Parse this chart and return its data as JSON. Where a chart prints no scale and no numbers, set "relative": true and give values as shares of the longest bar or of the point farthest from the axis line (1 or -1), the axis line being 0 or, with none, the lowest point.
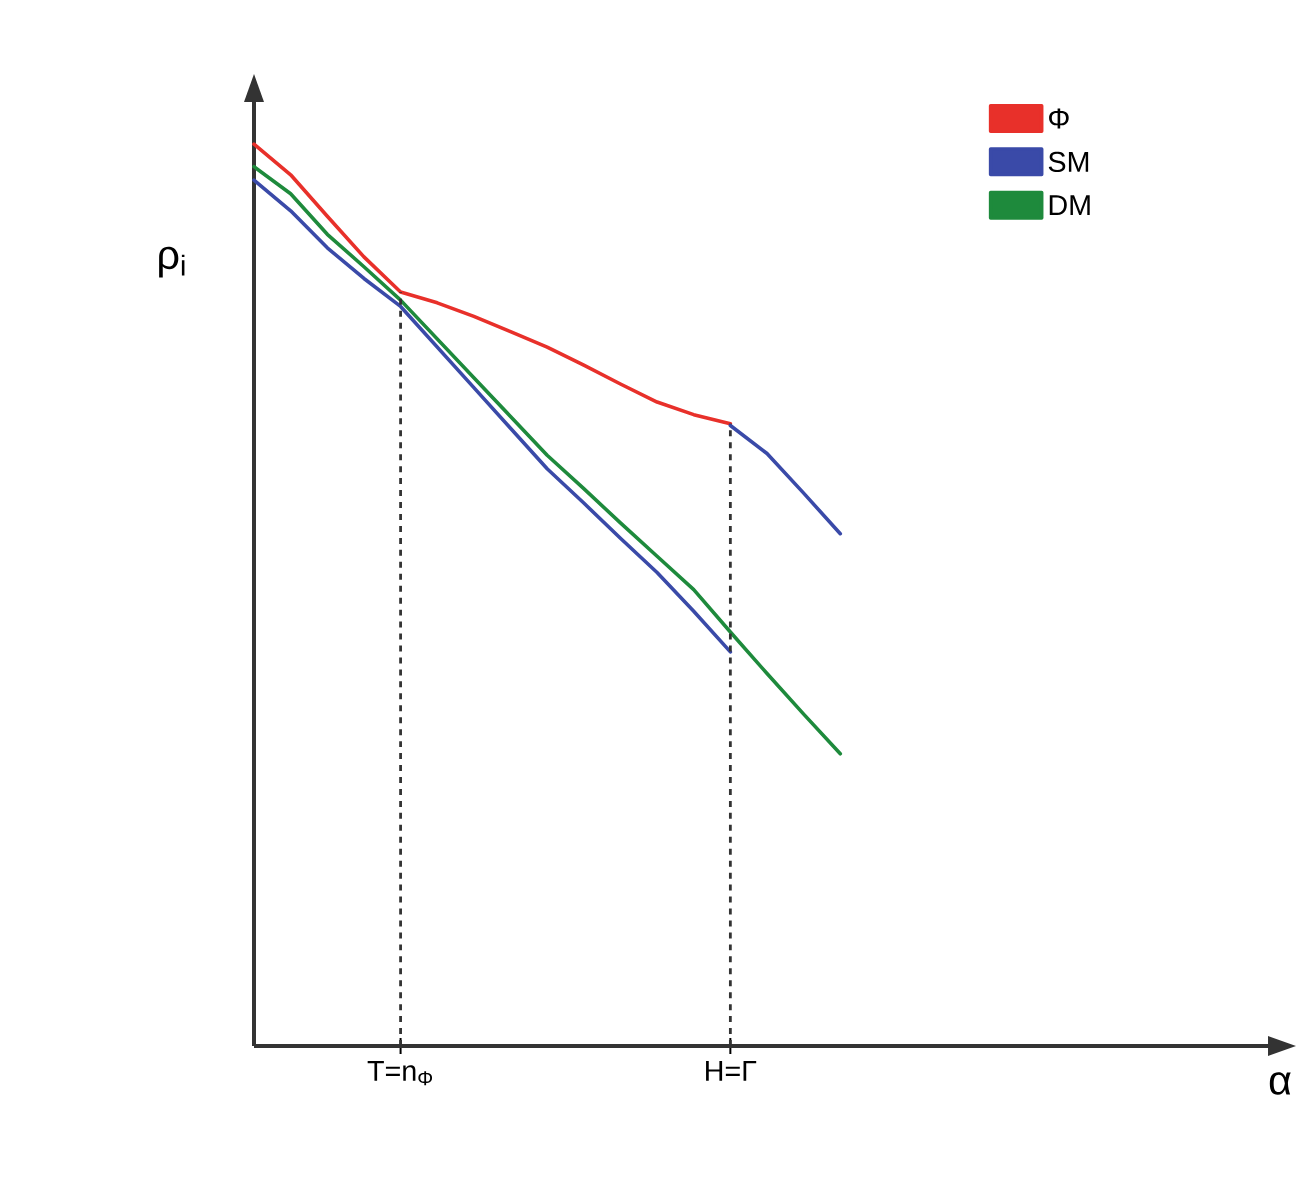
{
  "chart_data": {
    "type": "line",
    "relative": true,
    "xlabel": "α",
    "ylabel": "ρ$_{i}$",
    "categories": [
      null,
      null,
      null,
      null,
      "T=n$_{Φ}$",
      null,
      null,
      null,
      null,
      null,
      null,
      null,
      null,
      "H=Γ",
      null,
      null,
      null,
      null,
      null,
      null,
      null,
      null,
      null,
      null,
      null,
      null,
      null,
      null,
      null
    ],
    "legend": "top right",
    "marker": "none",
    "line_style": "solid",
    "ref_lines": [
      {
        "axis": "x",
        "value": "T=n$_{Φ}$",
        "color": "#333333",
        "line_style": "dashed"
      },
      {
        "axis": "x",
        "value": "H=Γ",
        "color": "#333333",
        "line_style": "dashed"
      }
    ],
    "series": [
      {
        "name": "Φ",
        "color": "#e8302a",
        "values": [
          1.0,
          0.966,
          0.92,
          0.875,
          0.836,
          0.824,
          0.809,
          0.792,
          0.775,
          0.755,
          0.734,
          0.714,
          0.7,
          0.69,
          null,
          null,
          null,
          null,
          null,
          null,
          null,
          null,
          null,
          null,
          null,
          null,
          null,
          null,
          null
        ]
      },
      {
        "name": "SM",
        "color": "#3a4aa8",
        "values": [
          0.96,
          0.926,
          0.885,
          0.851,
          0.82,
          0.775,
          0.73,
          0.685,
          0.64,
          0.602,
          0.563,
          0.525,
          0.482,
          0.437,
          null,
          null,
          null,
          null,
          null,
          null,
          null,
          null,
          null,
          null,
          null,
          null,
          null,
          null,
          null
        ]
      },
      {
        "color": "#3a4aa8",
        "values": [
          null,
          null,
          null,
          null,
          null,
          null,
          null,
          null,
          null,
          null,
          null,
          null,
          null,
          0.688,
          0.657,
          0.613,
          0.568,
          null,
          null,
          null,
          null,
          null,
          null,
          null,
          null,
          null,
          null,
          null,
          null
        ]
      },
      {
        "name": "DM",
        "color": "#1e8a3c",
        "values": [
          0.975,
          0.945,
          0.9,
          0.864,
          0.827,
          0.784,
          0.741,
          0.698,
          0.655,
          0.618,
          0.58,
          0.543,
          0.506,
          0.459,
          0.413,
          0.368,
          0.324,
          null,
          null,
          null,
          null,
          null,
          null,
          null,
          null,
          null,
          null,
          null,
          null
        ]
      }
    ]
  }
}
